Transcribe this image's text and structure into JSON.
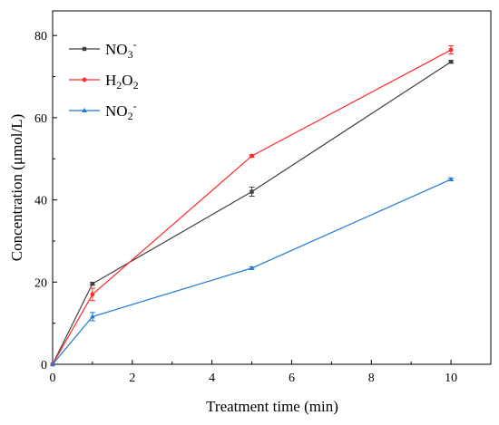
{
  "chart_data": {
    "type": "line",
    "title": "",
    "xlabel": "Treatment time (min)",
    "ylabel": "Concentration (μmol/L)",
    "xlim": [
      0,
      11
    ],
    "ylim": [
      0,
      86
    ],
    "x_ticks": [
      0,
      2,
      4,
      6,
      8,
      10
    ],
    "y_ticks": [
      0,
      20,
      40,
      60,
      80
    ],
    "grid": false,
    "legend_position": "top-left",
    "series": [
      {
        "name": "NO3-",
        "legend_base": "NO",
        "legend_sub": "3",
        "legend_sup": "-",
        "color": "#404040",
        "marker": "square",
        "x": [
          0,
          1,
          5,
          10
        ],
        "y": [
          0,
          19.6,
          42.0,
          73.6
        ],
        "error": [
          0,
          0.3,
          1.1,
          0.3
        ]
      },
      {
        "name": "H2O2",
        "legend_parts": [
          [
            "H",
            ""
          ],
          [
            "2",
            "sub"
          ],
          [
            "O",
            ""
          ],
          [
            "2",
            "sub"
          ]
        ],
        "color": "#ff2a2a",
        "marker": "circle",
        "x": [
          0,
          1,
          5,
          10
        ],
        "y": [
          0,
          17.0,
          50.7,
          76.5
        ],
        "error": [
          0,
          1.5,
          0.3,
          1.0
        ]
      },
      {
        "name": "NO2-",
        "legend_base": "NO",
        "legend_sub": "2",
        "legend_sup": "-",
        "color": "#1f78d6",
        "marker": "triangle",
        "x": [
          0,
          1,
          5,
          10
        ],
        "y": [
          0,
          11.6,
          23.4,
          45.0
        ],
        "error": [
          0,
          1.0,
          0.3,
          0.3
        ]
      }
    ]
  }
}
